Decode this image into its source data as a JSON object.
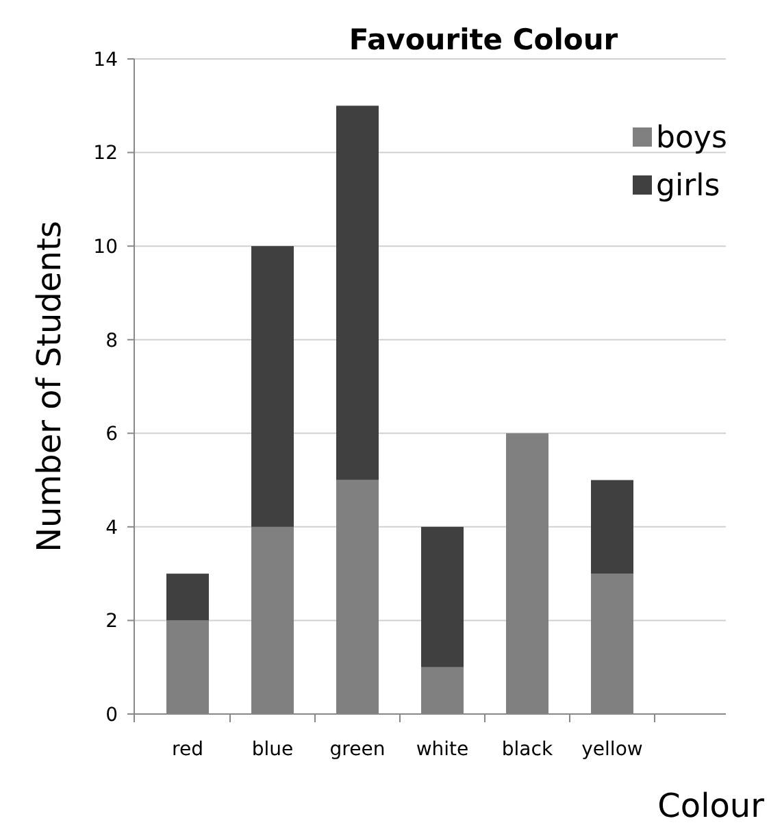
{
  "chart_data": {
    "type": "bar",
    "title": "Favourite Colour",
    "xlabel": "Colour",
    "ylabel": "Number of Students",
    "categories": [
      "red",
      "blue",
      "green",
      "white",
      "black",
      "yellow"
    ],
    "series": [
      {
        "name": "boys",
        "color": "#808080",
        "values": [
          2,
          4,
          5,
          1,
          6,
          3
        ]
      },
      {
        "name": "girls",
        "color": "#404040",
        "values": [
          1,
          6,
          8,
          3,
          0,
          2
        ]
      }
    ],
    "stacked": true,
    "ylim": [
      0,
      14
    ],
    "yticks": [
      0,
      2,
      4,
      6,
      8,
      10,
      12,
      14
    ],
    "grid": "y",
    "legend": "top right"
  }
}
